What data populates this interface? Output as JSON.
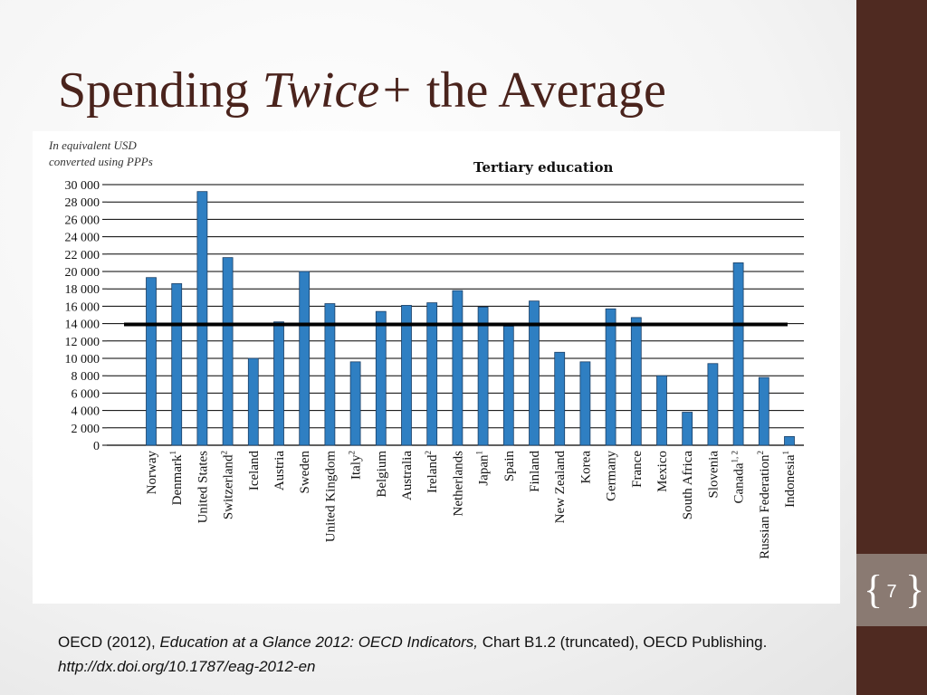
{
  "slide": {
    "title_pre": "Spending ",
    "title_em": "Twice+",
    "title_post": " the Average",
    "page_number": "7",
    "bracket_open": "{",
    "bracket_close": "}"
  },
  "caption": {
    "part1": "OECD (2012), ",
    "part2_italic": "Education at a Glance 2012: OECD Indicators,",
    "part3": " Chart B1.2 (truncated), OECD Publishing. ",
    "part4_italic": "http://dx.doi.org/10.1787/eag-2012-en"
  },
  "colors": {
    "title": "#4a231c",
    "sidebar": "#4f2a21",
    "page_box": "#8a7a72",
    "bar": "#2f7fc2",
    "bar_edge": "#1b3f66",
    "average_line": "#000000"
  },
  "chart_data": {
    "type": "bar",
    "title": "Tertiary education",
    "unit_note": [
      "In equivalent USD",
      "converted using PPPs"
    ],
    "ylim": [
      0,
      30000
    ],
    "yticks": [
      {
        "value": 0,
        "label": "0"
      },
      {
        "value": 2000,
        "label": "2 000"
      },
      {
        "value": 4000,
        "label": "4 000"
      },
      {
        "value": 6000,
        "label": "6 000"
      },
      {
        "value": 8000,
        "label": "8 000"
      },
      {
        "value": 10000,
        "label": "10 000"
      },
      {
        "value": 12000,
        "label": "12 000"
      },
      {
        "value": 14000,
        "label": "14 000"
      },
      {
        "value": 16000,
        "label": "16 000"
      },
      {
        "value": 18000,
        "label": "18 000"
      },
      {
        "value": 20000,
        "label": "20 000"
      },
      {
        "value": 22000,
        "label": "22 000"
      },
      {
        "value": 24000,
        "label": "24 000"
      },
      {
        "value": 26000,
        "label": "26 000"
      },
      {
        "value": 28000,
        "label": "28 000"
      },
      {
        "value": 30000,
        "label": "30 000"
      }
    ],
    "grid": "horizontal",
    "average_line": 13900,
    "categories": [
      {
        "label": "Norway",
        "sup": ""
      },
      {
        "label": "Denmark",
        "sup": "1"
      },
      {
        "label": "United States",
        "sup": ""
      },
      {
        "label": "Switzerland",
        "sup": "2"
      },
      {
        "label": "Iceland",
        "sup": ""
      },
      {
        "label": "Austria",
        "sup": ""
      },
      {
        "label": "Sweden",
        "sup": ""
      },
      {
        "label": "United Kingdom",
        "sup": ""
      },
      {
        "label": "Italy",
        "sup": "2"
      },
      {
        "label": "Belgium",
        "sup": ""
      },
      {
        "label": "Australia",
        "sup": ""
      },
      {
        "label": "Ireland",
        "sup": "2"
      },
      {
        "label": "Netherlands",
        "sup": ""
      },
      {
        "label": "Japan",
        "sup": "1"
      },
      {
        "label": "Spain",
        "sup": ""
      },
      {
        "label": "Finland",
        "sup": ""
      },
      {
        "label": "New Zealand",
        "sup": ""
      },
      {
        "label": "Korea",
        "sup": ""
      },
      {
        "label": "Germany",
        "sup": ""
      },
      {
        "label": "France",
        "sup": ""
      },
      {
        "label": "Mexico",
        "sup": ""
      },
      {
        "label": "South Africa",
        "sup": ""
      },
      {
        "label": "Slovenia",
        "sup": ""
      },
      {
        "label": "Canada",
        "sup": "1, 2"
      },
      {
        "label": "Russian Federation",
        "sup": "2"
      },
      {
        "label": "Indonesia",
        "sup": "1"
      }
    ],
    "values": [
      19300,
      18600,
      29200,
      21600,
      10000,
      14200,
      20000,
      16300,
      9600,
      15400,
      16100,
      16400,
      17800,
      15900,
      13700,
      16600,
      10700,
      9600,
      15700,
      14700,
      8000,
      3800,
      9400,
      21000,
      7800,
      1000
    ]
  }
}
